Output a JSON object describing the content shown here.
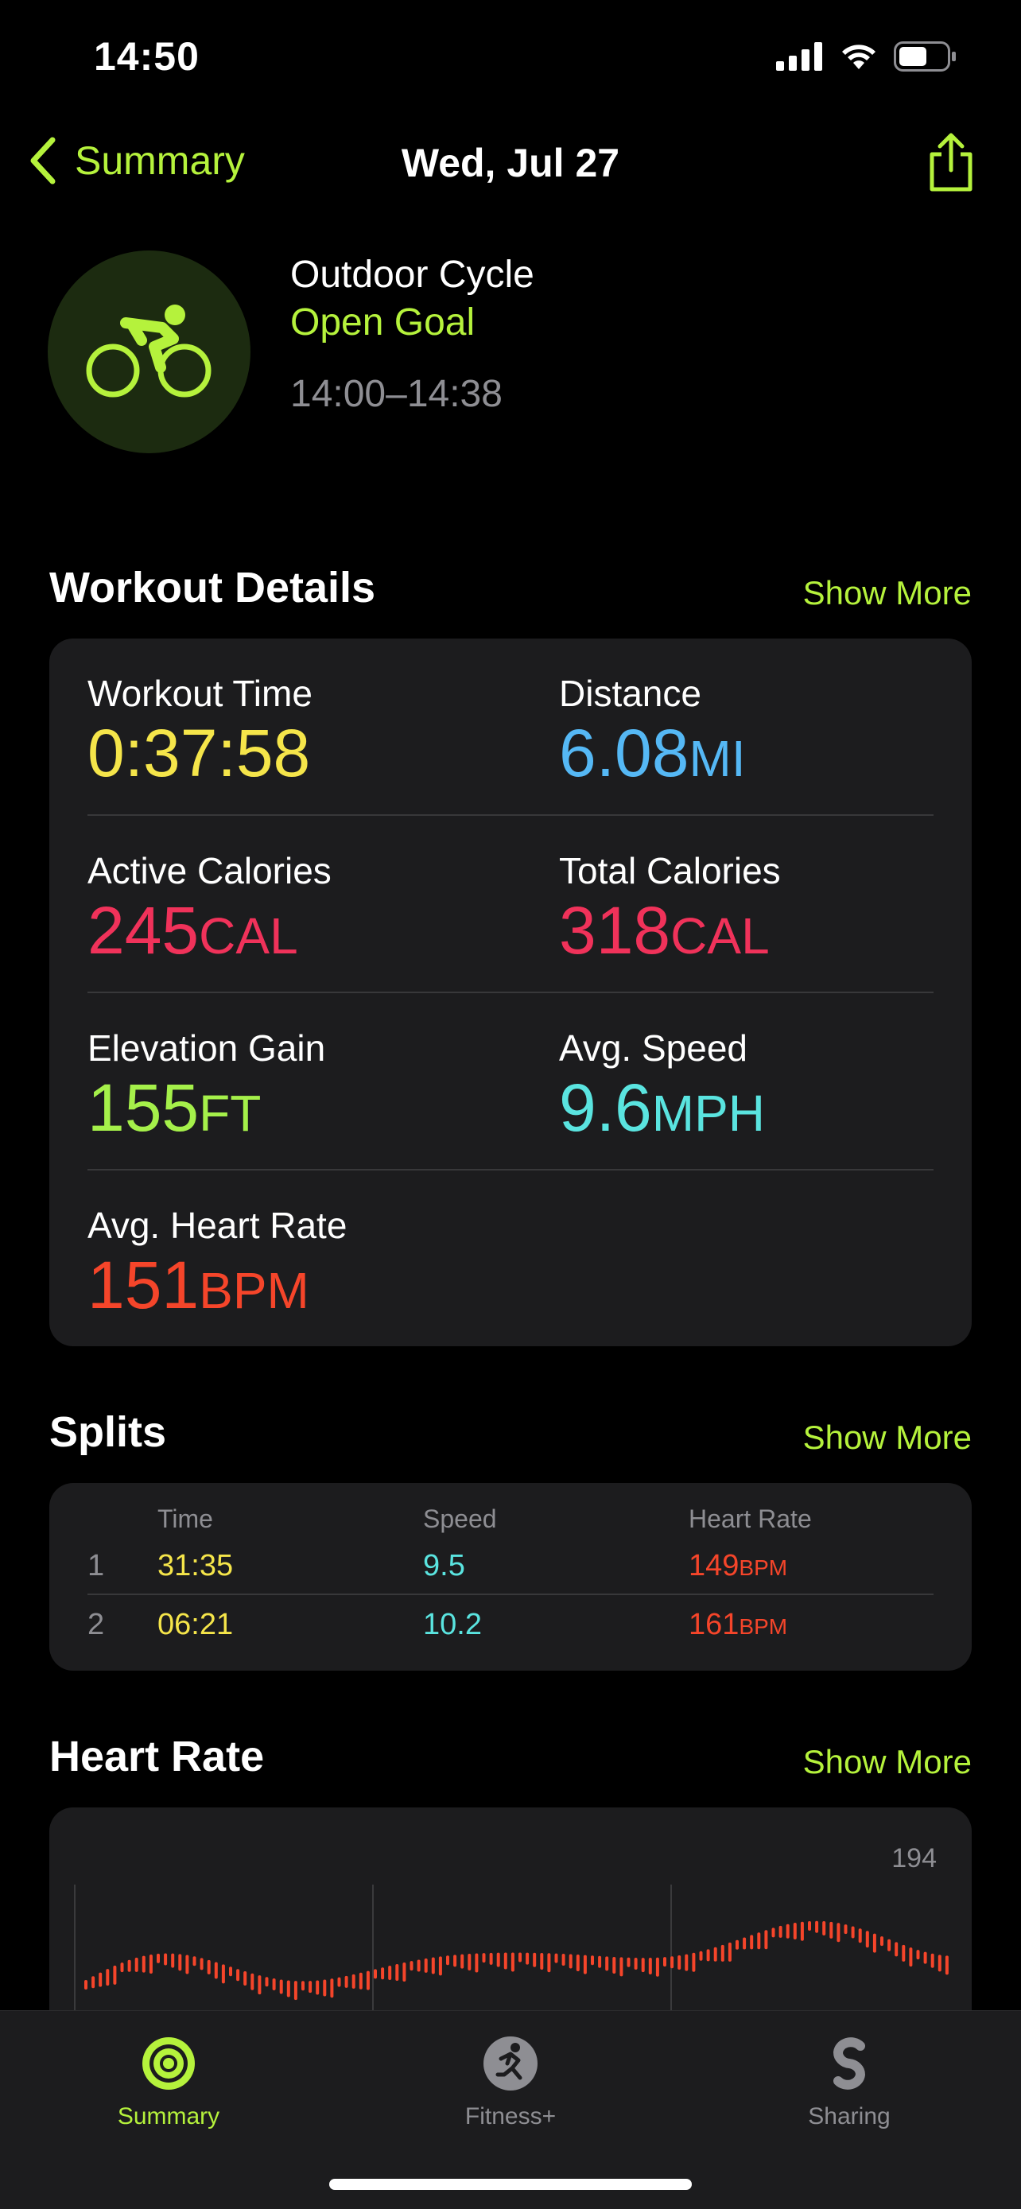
{
  "status_bar": {
    "time": "14:50",
    "icons": [
      "signal-icon",
      "wifi-icon",
      "battery-icon"
    ]
  },
  "nav": {
    "back_label": "Summary",
    "title": "Wed, Jul 27",
    "share_icon": "share-icon"
  },
  "workout": {
    "icon": "cycling-icon",
    "name": "Outdoor Cycle",
    "goal": "Open Goal",
    "time_range": "14:00–14:38"
  },
  "details": {
    "title": "Workout Details",
    "show_more": "Show More",
    "metrics": [
      {
        "label": "Workout Time",
        "value": "0:37:58",
        "unit": "",
        "color": "#f5e54a"
      },
      {
        "label": "Distance",
        "value": "6.08",
        "unit": "MI",
        "color": "#55b8f5"
      },
      {
        "label": "Active Calories",
        "value": "245",
        "unit": "CAL",
        "color": "#f0325a"
      },
      {
        "label": "Total Calories",
        "value": "318",
        "unit": "CAL",
        "color": "#f0325a"
      },
      {
        "label": "Elevation Gain",
        "value": "155",
        "unit": "FT",
        "color": "#a5f04a"
      },
      {
        "label": "Avg. Speed",
        "value": "9.6",
        "unit": "MPH",
        "color": "#5ae4e0"
      },
      {
        "label": "Avg. Heart Rate",
        "value": "151",
        "unit": "BPM",
        "color": "#f5452a"
      }
    ]
  },
  "splits": {
    "title": "Splits",
    "show_more": "Show More",
    "headers": {
      "time": "Time",
      "speed": "Speed",
      "heart_rate": "Heart Rate"
    },
    "rows": [
      {
        "index": "1",
        "time": "31:35",
        "speed": "9.5",
        "hr": "149",
        "hr_unit": "BPM"
      },
      {
        "index": "2",
        "time": "06:21",
        "speed": "10.2",
        "hr": "161",
        "hr_unit": "BPM"
      }
    ]
  },
  "heart_rate": {
    "title": "Heart Rate",
    "show_more": "Show More",
    "max_label": "194"
  },
  "colors": {
    "accent": "#b5f23c",
    "time": "#f5e54a",
    "speed": "#5ae4e0",
    "heart": "#f5452a"
  },
  "tabbar": {
    "tabs": [
      {
        "label": "Summary",
        "icon": "activity-rings-icon",
        "active": true
      },
      {
        "label": "Fitness+",
        "icon": "fitness-plus-icon",
        "active": false
      },
      {
        "label": "Sharing",
        "icon": "sharing-icon",
        "active": false
      }
    ]
  }
}
